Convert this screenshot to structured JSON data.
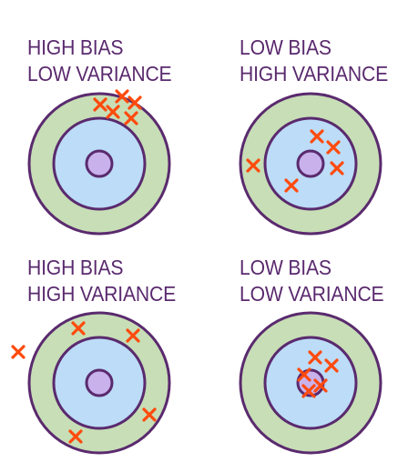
{
  "colors": {
    "text": "#5a2a6e",
    "outer_ring": "#c7deb6",
    "inner_ring": "#bcdcf7",
    "bullseye": "#c9b2ec",
    "stroke": "#5a2a6e",
    "marker": "#ff4a0c"
  },
  "panels": [
    {
      "label_lines": [
        "HIGH BIAS",
        "LOW VARIANCE"
      ],
      "markers": [
        [
          110,
          115
        ],
        [
          124,
          123
        ],
        [
          134,
          106
        ],
        [
          148,
          113
        ],
        [
          144,
          130
        ]
      ]
    },
    {
      "label_lines": [
        "LOW BIAS",
        "HIGH VARIANCE"
      ],
      "markers": [
        [
          348,
          150
        ],
        [
          366,
          162
        ],
        [
          370,
          185
        ],
        [
          278,
          182
        ],
        [
          320,
          204
        ]
      ]
    },
    {
      "label_lines": [
        "HIGH BIAS",
        "HIGH VARIANCE"
      ],
      "markers": [
        [
          86,
          361
        ],
        [
          146,
          369
        ],
        [
          20,
          387
        ],
        [
          164,
          456
        ],
        [
          83,
          480
        ]
      ]
    },
    {
      "label_lines": [
        "LOW BIAS",
        "LOW VARIANCE"
      ],
      "markers": [
        [
          346,
          393
        ],
        [
          364,
          402
        ],
        [
          334,
          412
        ],
        [
          352,
          424
        ],
        [
          339,
          430
        ]
      ]
    }
  ]
}
